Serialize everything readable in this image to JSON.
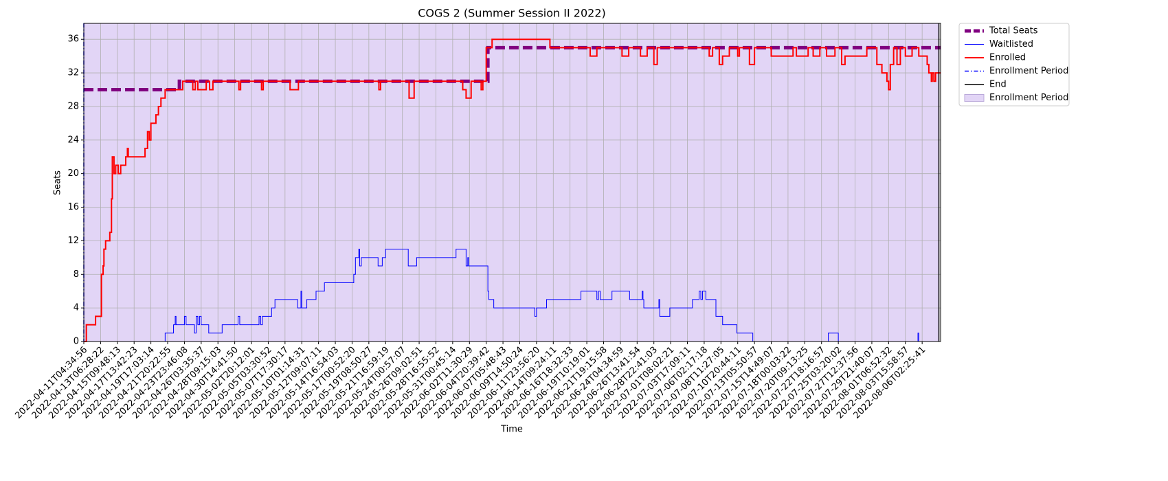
{
  "chart_data": {
    "type": "step",
    "title": "COGS 2 (Summer Session II 2022)",
    "x_label": "Time",
    "y_label": "Seats",
    "xlim": [
      0,
      51.1
    ],
    "ylim": [
      0,
      37.9
    ],
    "grid": true,
    "yticks": [
      0,
      4,
      8,
      12,
      16,
      20,
      24,
      28,
      32,
      36
    ],
    "xticks": [
      {
        "value": 0,
        "label": "2022-04-11T04:34:56"
      },
      {
        "value": 1,
        "label": "2022-04-13T06:28:22"
      },
      {
        "value": 2,
        "label": "2022-04-15T09:48:13"
      },
      {
        "value": 3,
        "label": "2022-04-17T13:42:23"
      },
      {
        "value": 4,
        "label": "2022-04-19T17:03:14"
      },
      {
        "value": 5,
        "label": "2022-04-21T20:22:55"
      },
      {
        "value": 6,
        "label": "2022-04-23T23:46:08"
      },
      {
        "value": 7,
        "label": "2022-04-26T03:35:37"
      },
      {
        "value": 8,
        "label": "2022-04-28T09:15:03"
      },
      {
        "value": 9,
        "label": "2022-04-30T14:41:50"
      },
      {
        "value": 10,
        "label": "2022-05-02T20:12:01"
      },
      {
        "value": 11,
        "label": "2022-05-05T03:30:52"
      },
      {
        "value": 12,
        "label": "2022-05-07T17:30:17"
      },
      {
        "value": 13,
        "label": "2022-05-10T01:14:31"
      },
      {
        "value": 14,
        "label": "2022-05-12T09:07:11"
      },
      {
        "value": 15,
        "label": "2022-05-14T16:54:03"
      },
      {
        "value": 16,
        "label": "2022-05-17T00:52:20"
      },
      {
        "value": 17,
        "label": "2022-05-19T08:50:27"
      },
      {
        "value": 18,
        "label": "2022-05-21T16:59:19"
      },
      {
        "value": 19,
        "label": "2022-05-24T00:57:07"
      },
      {
        "value": 20,
        "label": "2022-05-26T09:02:51"
      },
      {
        "value": 21,
        "label": "2022-05-28T16:55:52"
      },
      {
        "value": 22,
        "label": "2022-05-31T00:45:14"
      },
      {
        "value": 23,
        "label": "2022-06-02T11:30:29"
      },
      {
        "value": 24,
        "label": "2022-06-04T20:39:42"
      },
      {
        "value": 25,
        "label": "2022-06-07T05:48:43"
      },
      {
        "value": 26,
        "label": "2022-06-09T14:50:24"
      },
      {
        "value": 27,
        "label": "2022-06-11T23:56:20"
      },
      {
        "value": 28,
        "label": "2022-06-14T09:24:11"
      },
      {
        "value": 29,
        "label": "2022-06-16T18:32:33"
      },
      {
        "value": 30,
        "label": "2022-06-19T10:19:01"
      },
      {
        "value": 31,
        "label": "2022-06-21T19:15:58"
      },
      {
        "value": 32,
        "label": "2022-06-24T04:34:59"
      },
      {
        "value": 33,
        "label": "2022-06-26T13:41:54"
      },
      {
        "value": 34,
        "label": "2022-06-28T22:41:03"
      },
      {
        "value": 35,
        "label": "2022-07-01T08:02:21"
      },
      {
        "value": 36,
        "label": "2022-07-03T17:09:11"
      },
      {
        "value": 37,
        "label": "2022-07-06T02:17:18"
      },
      {
        "value": 38,
        "label": "2022-07-08T11:27:05"
      },
      {
        "value": 39,
        "label": "2022-07-10T20:44:11"
      },
      {
        "value": 40,
        "label": "2022-07-13T05:50:57"
      },
      {
        "value": 41,
        "label": "2022-07-15T14:49:07"
      },
      {
        "value": 42,
        "label": "2022-07-18T00:03:22"
      },
      {
        "value": 43,
        "label": "2022-07-20T09:13:25"
      },
      {
        "value": 44,
        "label": "2022-07-22T18:16:57"
      },
      {
        "value": 45,
        "label": "2022-07-25T03:20:02"
      },
      {
        "value": 46,
        "label": "2022-07-27T12:37:56"
      },
      {
        "value": 47,
        "label": "2022-07-29T21:40:07"
      },
      {
        "value": 48,
        "label": "2022-08-01T06:52:32"
      },
      {
        "value": 49,
        "label": "2022-08-03T15:58:57"
      },
      {
        "value": 50,
        "label": "2022-08-06T02:25:41"
      }
    ],
    "series": [
      {
        "name": "Total Seats",
        "color": "#800080",
        "linestyle": "dashed",
        "x": [
          0,
          5.7,
          24.1,
          51.1
        ],
        "values": [
          30,
          31,
          35,
          35
        ]
      },
      {
        "name": "Waitlisted",
        "color": "#0000ff",
        "linestyle": "solid",
        "x": [
          0,
          4.85,
          5.35,
          5.45,
          5.5,
          6.0,
          6.1,
          6.6,
          6.7,
          6.8,
          6.9,
          7.0,
          7.45,
          8.25,
          9.2,
          9.3,
          10.45,
          10.55,
          10.65,
          11.2,
          11.4,
          12.75,
          12.95,
          13.0,
          13.3,
          13.85,
          14.35,
          16.1,
          16.2,
          16.4,
          16.45,
          16.55,
          17.55,
          17.8,
          18.0,
          19.35,
          19.85,
          22.2,
          22.8,
          22.9,
          22.95,
          24.1,
          24.15,
          24.45,
          26.9,
          27.0,
          27.6,
          29.65,
          30.6,
          30.7,
          30.8,
          31.5,
          32.55,
          33.3,
          33.35,
          33.4,
          34.3,
          34.35,
          34.95,
          36.3,
          36.7,
          36.8,
          36.9,
          37.1,
          37.7,
          38.1,
          38.95,
          39.9,
          44.4,
          45.0,
          49.75,
          49.8,
          51.1
        ],
        "values": [
          0,
          1,
          2,
          3,
          2,
          3,
          2,
          1,
          3,
          2,
          3,
          2,
          1,
          2,
          3,
          2,
          3,
          2,
          3,
          4,
          5,
          4,
          6,
          4,
          5,
          6,
          7,
          8,
          10,
          11,
          9,
          10,
          9,
          10,
          11,
          9,
          10,
          11,
          9,
          10,
          9,
          6,
          5,
          4,
          3,
          4,
          5,
          6,
          5,
          6,
          5,
          6,
          5,
          6,
          5,
          4,
          5,
          3,
          4,
          5,
          6,
          5,
          6,
          5,
          3,
          2,
          1,
          0,
          1,
          0,
          1,
          0,
          0
        ]
      },
      {
        "name": "Enrolled",
        "color": "#ff0000",
        "linestyle": "solid",
        "x": [
          0,
          0.15,
          0.7,
          1.05,
          1.15,
          1.2,
          1.3,
          1.55,
          1.65,
          1.7,
          1.8,
          1.9,
          2.05,
          2.2,
          2.5,
          2.6,
          2.65,
          3.65,
          3.8,
          3.9,
          4.0,
          4.3,
          4.45,
          4.6,
          4.85,
          5.9,
          6.5,
          6.65,
          6.8,
          7.3,
          7.5,
          7.7,
          9.25,
          9.35,
          10.6,
          10.7,
          12.3,
          12.8,
          17.6,
          17.7,
          19.4,
          19.7,
          22.6,
          22.8,
          23.1,
          23.7,
          23.8,
          24.0,
          24.35,
          27.8,
          30.2,
          30.6,
          32.1,
          32.5,
          33.2,
          33.6,
          34.0,
          34.2,
          37.3,
          37.5,
          37.9,
          38.1,
          38.5,
          39.0,
          39.1,
          39.7,
          40.0,
          41.0,
          42.3,
          42.5,
          43.2,
          43.5,
          43.9,
          44.3,
          44.8,
          45.2,
          45.4,
          46.7,
          47.3,
          47.6,
          47.9,
          48.0,
          48.1,
          48.3,
          48.5,
          48.7,
          49.0,
          49.4,
          49.8,
          50.3,
          50.4,
          50.55,
          50.6,
          50.7,
          50.8,
          51.1
        ],
        "values": [
          0,
          2,
          3,
          8,
          9,
          11,
          12,
          13,
          17,
          22,
          20,
          21,
          20,
          21,
          22,
          23,
          22,
          23,
          25,
          24,
          26,
          27,
          28,
          29,
          30,
          31,
          30,
          31,
          30,
          31,
          30,
          31,
          30,
          31,
          30,
          31,
          30,
          31,
          30,
          31,
          29,
          31,
          30,
          29,
          31,
          30,
          31,
          35,
          36,
          35,
          34,
          35,
          34,
          35,
          34,
          35,
          33,
          35,
          34,
          35,
          33,
          34,
          35,
          34,
          35,
          33,
          35,
          34,
          35,
          34,
          35,
          34,
          35,
          34,
          35,
          33,
          34,
          35,
          33,
          32,
          31,
          30,
          33,
          35,
          33,
          35,
          34,
          35,
          34,
          33,
          32,
          31,
          32,
          31,
          32,
          32
        ]
      }
    ],
    "vlines": [
      {
        "name": "Enrollment Period",
        "x": 0,
        "color": "#0000ff",
        "linestyle": "dashdot"
      },
      {
        "name": "End",
        "x": 51.0,
        "color": "#000000",
        "linestyle": "solid"
      }
    ],
    "span": {
      "name": "Enrollment Period",
      "x": [
        0,
        51.0
      ],
      "color": "#e2d5f6"
    }
  }
}
